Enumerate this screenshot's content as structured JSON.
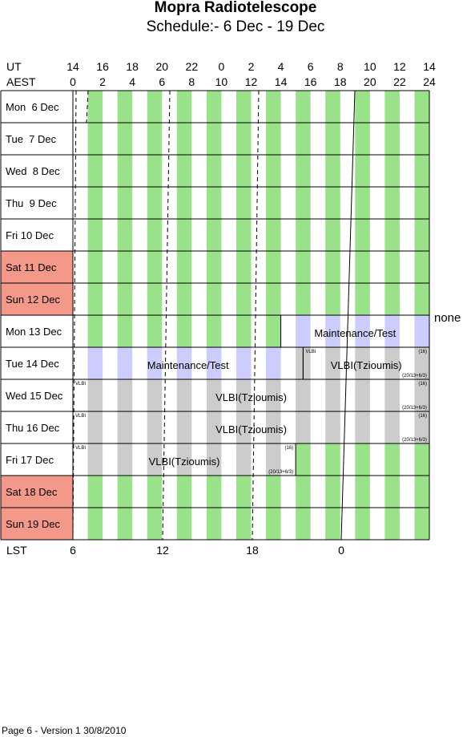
{
  "title": "Mopra Radiotelescope",
  "subtitle": "Schedule:- 6  Dec - 19 Dec",
  "header": {
    "ut_label": "UT",
    "aest_label": "AEST",
    "ut_ticks": [
      "14",
      "16",
      "18",
      "20",
      "22",
      "0",
      "2",
      "4",
      "6",
      "8",
      "10",
      "12",
      "14"
    ],
    "aest_ticks": [
      "0",
      "2",
      "4",
      "6",
      "8",
      "10",
      "12",
      "14",
      "16",
      "18",
      "20",
      "22",
      "24"
    ]
  },
  "days": [
    {
      "name": "Mon",
      "date": "6",
      "mon": "Dec",
      "weekend": false
    },
    {
      "name": "Tue",
      "date": "7",
      "mon": "Dec",
      "weekend": false
    },
    {
      "name": "Wed",
      "date": "8",
      "mon": "Dec",
      "weekend": false
    },
    {
      "name": "Thu",
      "date": "9",
      "mon": "Dec",
      "weekend": false
    },
    {
      "name": "Fri",
      "date": "10",
      "mon": "Dec",
      "weekend": false
    },
    {
      "name": "Sat",
      "date": "11",
      "mon": "Dec",
      "weekend": true
    },
    {
      "name": "Sun",
      "date": "12",
      "mon": "Dec",
      "weekend": true
    },
    {
      "name": "Mon",
      "date": "13",
      "mon": "Dec",
      "weekend": false
    },
    {
      "name": "Tue",
      "date": "14",
      "mon": "Dec",
      "weekend": false
    },
    {
      "name": "Wed",
      "date": "15",
      "mon": "Dec",
      "weekend": false
    },
    {
      "name": "Thu",
      "date": "16",
      "mon": "Dec",
      "weekend": false
    },
    {
      "name": "Fri",
      "date": "17",
      "mon": "Dec",
      "weekend": false
    },
    {
      "name": "Sat",
      "date": "18",
      "mon": "Dec",
      "weekend": true
    },
    {
      "name": "Sun",
      "date": "19",
      "mon": "Dec",
      "weekend": true
    }
  ],
  "blocks": [
    {
      "row": 7,
      "start_h": 14,
      "end_h": 24,
      "kind": "maint",
      "label": "Maintenance/Test",
      "small_left": "",
      "small_right_top": "",
      "small_right_bottom": ""
    },
    {
      "row": 8,
      "start_h": 0,
      "end_h": 15.5,
      "kind": "maint",
      "label": "Maintenance/Test",
      "small_left": "",
      "small_right_top": "",
      "small_right_bottom": ""
    },
    {
      "row": 8,
      "start_h": 15.5,
      "end_h": 24,
      "kind": "vlbi",
      "label": "VLBI(Tzioumis)",
      "small_left": "VLBI",
      "small_right_top": "(16)",
      "small_right_bottom": "(20/13+6/3)"
    },
    {
      "row": 9,
      "start_h": 0,
      "end_h": 24,
      "kind": "vlbi",
      "label": "VLBI(Tzioumis)",
      "small_left": "VLBI",
      "small_right_top": "(16)",
      "small_right_bottom": "(20/13+6/3)"
    },
    {
      "row": 10,
      "start_h": 0,
      "end_h": 24,
      "kind": "vlbi",
      "label": "VLBI(Tzioumis)",
      "small_left": "VLBI",
      "small_right_top": "(16)",
      "small_right_bottom": "(20/13+6/3)"
    },
    {
      "row": 11,
      "start_h": 0,
      "end_h": 15,
      "kind": "vlbi",
      "label": "VLBI(Tzioumis)",
      "small_left": "VLBI",
      "small_right_top": "(16)",
      "small_right_bottom": "(20/13+6/3)"
    }
  ],
  "side_note": "none",
  "lst": {
    "label": "LST",
    "ticks": [
      "6",
      "12",
      "18",
      "0"
    ]
  },
  "footer": "Page 6 - Version 1  30/8/2010",
  "colors": {
    "green": "#99e28a",
    "grey": "#cccccc",
    "lavender": "#ccccff",
    "weekend": "#f4988a",
    "grid": "#000000"
  }
}
